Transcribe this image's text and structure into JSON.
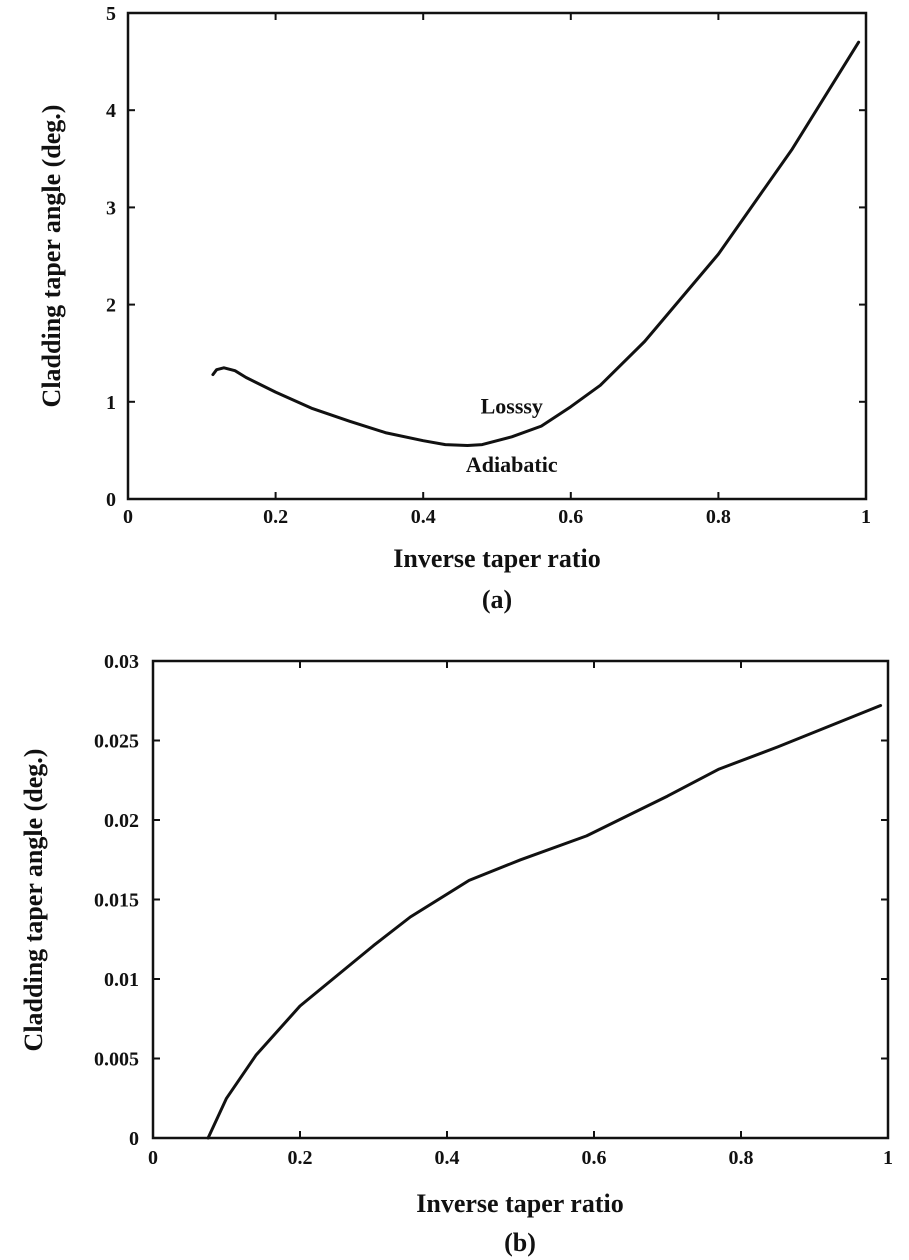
{
  "chart_data": [
    {
      "type": "line",
      "panel_label": "(a)",
      "xlabel": "Inverse taper ratio",
      "ylabel": "Cladding taper angle (deg.)",
      "xlim": [
        0,
        1
      ],
      "ylim": [
        0,
        5
      ],
      "x_ticks": [
        0,
        0.2,
        0.4,
        0.6,
        0.8,
        1
      ],
      "x_tick_labels": [
        "0",
        "0.2",
        "0.4",
        "0.6",
        "0.8",
        "1"
      ],
      "y_ticks": [
        0,
        1,
        2,
        3,
        4,
        5
      ],
      "y_tick_labels": [
        "0",
        "1",
        "2",
        "3",
        "4",
        "5"
      ],
      "grid": false,
      "legend": "none",
      "annotations": [
        {
          "text": "Losssy",
          "x": 0.52,
          "y": 0.88
        },
        {
          "text": "Adiabatic",
          "x": 0.52,
          "y": 0.28
        }
      ],
      "series": [
        {
          "x": [
            0.115,
            0.12,
            0.13,
            0.145,
            0.16,
            0.2,
            0.25,
            0.3,
            0.35,
            0.4,
            0.43,
            0.46,
            0.48,
            0.52,
            0.56,
            0.6,
            0.64,
            0.7,
            0.72,
            0.8,
            0.9,
            0.99
          ],
          "y": [
            1.28,
            1.33,
            1.35,
            1.32,
            1.25,
            1.1,
            0.93,
            0.8,
            0.68,
            0.6,
            0.56,
            0.55,
            0.56,
            0.64,
            0.75,
            0.95,
            1.17,
            1.62,
            1.8,
            2.52,
            3.6,
            4.7
          ]
        }
      ]
    },
    {
      "type": "line",
      "panel_label": "(b)",
      "xlabel": "Inverse taper ratio",
      "ylabel": "Cladding taper angle (deg.)",
      "xlim": [
        0,
        1
      ],
      "ylim": [
        0,
        0.03
      ],
      "x_ticks": [
        0,
        0.2,
        0.4,
        0.6,
        0.8,
        1
      ],
      "x_tick_labels": [
        "0",
        "0.2",
        "0.4",
        "0.6",
        "0.8",
        "1"
      ],
      "y_ticks": [
        0,
        0.005,
        0.01,
        0.015,
        0.02,
        0.025,
        0.03
      ],
      "y_tick_labels": [
        "0",
        "0.005",
        "0.01",
        "0.015",
        "0.02",
        "0.025",
        "0.03"
      ],
      "grid": false,
      "legend": "none",
      "annotations": [],
      "series": [
        {
          "x": [
            0.075,
            0.1,
            0.14,
            0.2,
            0.3,
            0.35,
            0.43,
            0.5,
            0.59,
            0.7,
            0.77,
            0.85,
            0.99
          ],
          "y": [
            0.0,
            0.0025,
            0.0052,
            0.0083,
            0.0121,
            0.0139,
            0.0162,
            0.0175,
            0.019,
            0.0215,
            0.0232,
            0.0246,
            0.0272
          ]
        }
      ]
    }
  ]
}
